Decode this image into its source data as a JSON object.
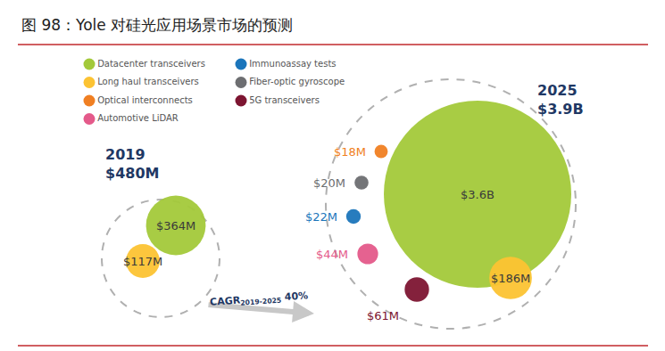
{
  "chart_data": {
    "type": "bubble",
    "title": "图 98：Yole 对硅光应用场景市场的预测",
    "legend": "top left",
    "data_labels": true,
    "tick_labels": false,
    "categories": [
      "2019",
      "2025"
    ],
    "totals": [
      480,
      3900
    ],
    "total_labels": [
      "$480M",
      "$3.9B"
    ],
    "cagr": {
      "label": "CAGR",
      "period": "2019-2025",
      "value": 40,
      "value_label": "40%"
    },
    "series": [
      {
        "name": "Datacenter transceivers",
        "color": "#a3c93a",
        "values": [
          364,
          3600
        ],
        "value_labels": [
          "$364M",
          "$3.6B"
        ]
      },
      {
        "name": "Long haul transceivers",
        "color": "#fcc333",
        "values": [
          117,
          186
        ],
        "value_labels": [
          "$117M",
          "$186M"
        ]
      },
      {
        "name": "Optical interconnects",
        "color": "#f07f22",
        "values": [
          null,
          18
        ],
        "value_labels": [
          null,
          "$18M"
        ]
      },
      {
        "name": "Automotive LiDAR",
        "color": "#e45a8a",
        "values": [
          null,
          44
        ],
        "value_labels": [
          null,
          "$44M"
        ]
      },
      {
        "name": "Immunoassay tests",
        "color": "#1b75bb",
        "values": [
          null,
          22
        ],
        "value_labels": [
          null,
          "$22M"
        ]
      },
      {
        "name": "Fiber-optic gyroscope",
        "color": "#6d6e71",
        "values": [
          null,
          20
        ],
        "value_labels": [
          null,
          "$20M"
        ]
      },
      {
        "name": "5G transceivers",
        "color": "#7d1531",
        "values": [
          null,
          61
        ],
        "value_labels": [
          null,
          "$61M"
        ]
      }
    ]
  }
}
